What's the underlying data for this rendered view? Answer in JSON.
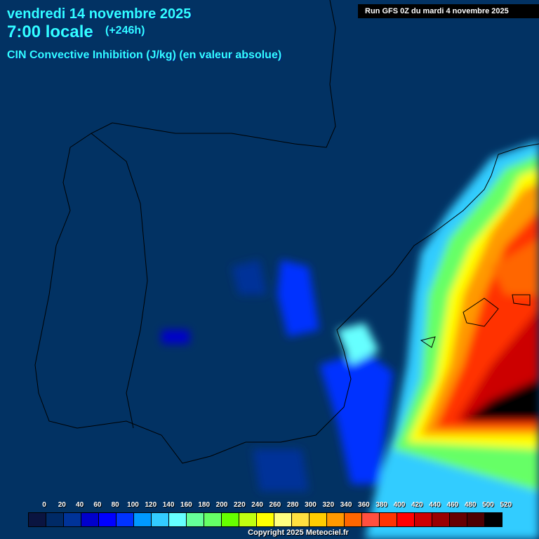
{
  "header": {
    "date": "vendredi 14 novembre 2025",
    "time": "7:00 locale",
    "lead": "(+246h)",
    "parameter": "CIN Convective Inhibition (J/kg) (en valeur absolue)",
    "run": "Run GFS 0Z du mardi 4 novembre 2025"
  },
  "legend": {
    "labels": [
      "0",
      "20",
      "40",
      "60",
      "80",
      "100",
      "120",
      "140",
      "160",
      "180",
      "200",
      "220",
      "240",
      "260",
      "280",
      "300",
      "320",
      "340",
      "360",
      "380",
      "400",
      "420",
      "440",
      "460",
      "480",
      "500",
      "520"
    ],
    "colors": [
      "#0a1440",
      "#002a66",
      "#003399",
      "#0000cc",
      "#0000ff",
      "#0033ff",
      "#0099ff",
      "#33ccff",
      "#66ffff",
      "#66ff99",
      "#66ff66",
      "#66ff00",
      "#c0ff10",
      "#ffff00",
      "#ffff80",
      "#ffe040",
      "#ffcc00",
      "#ff9900",
      "#ff6600",
      "#ff4f3f",
      "#ff3300",
      "#ff0000",
      "#cc0000",
      "#990000",
      "#660000",
      "#4d0000",
      "#000000"
    ]
  },
  "footer": {
    "copyright": "Copyright 2025 Meteociel.fr"
  }
}
